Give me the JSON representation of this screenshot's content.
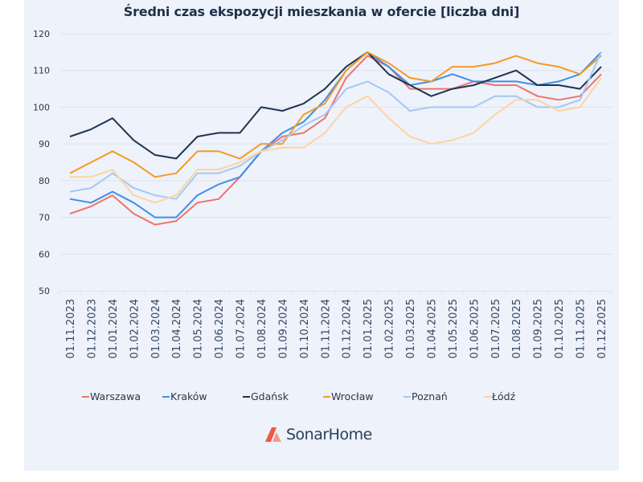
{
  "chart_data": {
    "type": "line",
    "title": "Średni czas ekspozycji mieszkania w ofercie [liczba dni]",
    "xlabel": "",
    "ylabel": "",
    "ylim": [
      50,
      120
    ],
    "yticks": [
      50,
      60,
      70,
      80,
      90,
      100,
      110,
      120
    ],
    "grid": true,
    "legend_position": "bottom",
    "categories": [
      "01.11.2023",
      "01.12.2023",
      "01.01.2024",
      "01.02.2024",
      "01.03.2024",
      "01.04.2024",
      "01.05.2024",
      "01.06.2024",
      "01.07.2024",
      "01.08.2024",
      "01.09.2024",
      "01.10.2024",
      "01.11.2024",
      "01.12.2024",
      "01.01.2025",
      "01.02.2025",
      "01.03.2025",
      "01.04.2025",
      "01.05.2025",
      "01.06.2025",
      "01.07.2025",
      "01.08.2025",
      "01.09.2025",
      "01.10.2025",
      "01.11.2025",
      "01.12.2025"
    ],
    "series": [
      {
        "name": "Warszawa",
        "color": "#f2726a",
        "values": [
          71,
          73,
          76,
          71,
          68,
          69,
          74,
          75,
          81,
          88,
          92,
          93,
          97,
          108,
          114,
          111,
          105,
          105,
          105,
          107,
          106,
          106,
          103,
          102,
          103,
          109
        ]
      },
      {
        "name": "Kraków",
        "color": "#3f8fe6",
        "values": [
          75,
          74,
          77,
          74,
          70,
          70,
          76,
          79,
          81,
          88,
          93,
          96,
          102,
          110,
          115,
          111,
          106,
          107,
          109,
          107,
          107,
          107,
          106,
          107,
          109,
          115
        ]
      },
      {
        "name": "Gdańsk",
        "color": "#1e3450",
        "values": [
          92,
          94,
          97,
          91,
          87,
          86,
          92,
          93,
          93,
          100,
          99,
          101,
          105,
          111,
          115,
          109,
          106,
          103,
          105,
          106,
          108,
          110,
          106,
          106,
          105,
          111
        ]
      },
      {
        "name": "Wrocław",
        "color": "#f59b22",
        "values": [
          82,
          85,
          88,
          85,
          81,
          82,
          88,
          88,
          86,
          90,
          90,
          98,
          101,
          110,
          115,
          112,
          108,
          107,
          111,
          111,
          112,
          114,
          112,
          111,
          109,
          114
        ]
      },
      {
        "name": "Poznań",
        "color": "#a5c8f2",
        "values": [
          77,
          78,
          82,
          78,
          76,
          75,
          82,
          82,
          84,
          88,
          91,
          95,
          98,
          105,
          107,
          104,
          99,
          100,
          100,
          100,
          103,
          103,
          100,
          100,
          102,
          115
        ]
      },
      {
        "name": "Łódź",
        "color": "#fdd49e",
        "values": [
          81,
          81,
          83,
          76,
          74,
          76,
          83,
          83,
          85,
          88,
          89,
          89,
          93,
          100,
          103,
          97,
          92,
          90,
          91,
          93,
          98,
          102,
          102,
          99,
          100,
          108
        ]
      }
    ]
  },
  "branding": {
    "logo_text": "SonarHome",
    "logo_icon": "house-roof-icon",
    "logo_colors": [
      "#ef5a45",
      "#f59a88"
    ]
  },
  "colors": {
    "background": "#edf2fb",
    "gridline": "#dde3ec",
    "axis_text": "#2d3748",
    "title": "#1f3049"
  }
}
